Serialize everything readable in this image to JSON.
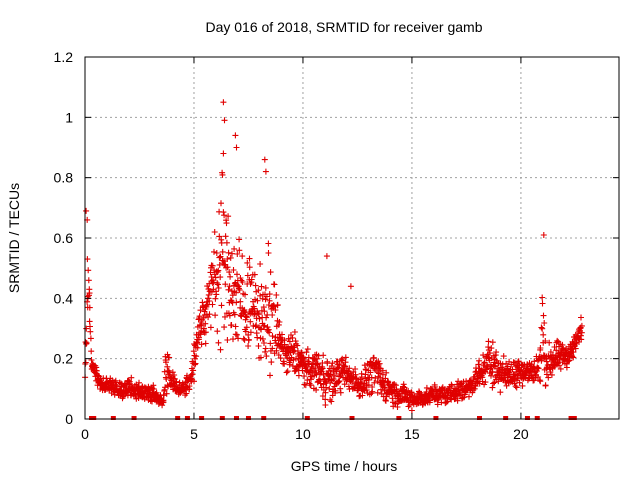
{
  "chart_data": {
    "type": "scatter",
    "title": "Day 016 of 2018, SRMTID for receiver gamb",
    "xlabel": "GPS time / hours",
    "ylabel": "SRMTID / TECUs",
    "xlim": [
      0,
      24.5
    ],
    "ylim": [
      0,
      1.2
    ],
    "grid": true,
    "xticks": [
      0,
      5,
      10,
      15,
      20
    ],
    "xtick_labels": [
      "0",
      "5",
      "10",
      "15",
      "20"
    ],
    "yticks": [
      0,
      0.2,
      0.4,
      0.6,
      0.8,
      1.0,
      1.2
    ],
    "ytick_labels": [
      "0",
      "0.2",
      "0.4",
      "0.6",
      "0.8",
      "1",
      "1.2"
    ],
    "marker": "+",
    "color": "#e00000",
    "envelope_hours": [
      0.0,
      0.1,
      0.15,
      0.3,
      0.5,
      1.0,
      1.5,
      2.0,
      2.5,
      3.0,
      3.3,
      3.6,
      3.75,
      3.9,
      4.2,
      4.5,
      4.8,
      5.0,
      5.2,
      5.5,
      5.8,
      6.0,
      6.3,
      6.6,
      6.9,
      7.2,
      7.5,
      7.8,
      8.1,
      8.4,
      8.7,
      9.0,
      9.3,
      9.6,
      10.0,
      10.3,
      10.7,
      11.0,
      11.3,
      11.6,
      12.0,
      12.3,
      12.6,
      13.0,
      13.3,
      13.6,
      14.0,
      14.3,
      14.6,
      15.0,
      15.3,
      15.6,
      16.0,
      16.5,
      17.0,
      17.5,
      18.0,
      18.3,
      18.6,
      19.0,
      19.5,
      20.0,
      20.3,
      20.6,
      20.9,
      21.0,
      21.1,
      21.3,
      21.6,
      22.0,
      22.3,
      22.6,
      22.8
    ],
    "envelope_center": [
      0.16,
      0.4,
      0.5,
      0.18,
      0.14,
      0.11,
      0.1,
      0.1,
      0.09,
      0.09,
      0.07,
      0.06,
      0.2,
      0.14,
      0.1,
      0.1,
      0.12,
      0.18,
      0.3,
      0.35,
      0.42,
      0.5,
      0.55,
      0.45,
      0.42,
      0.38,
      0.4,
      0.35,
      0.33,
      0.36,
      0.32,
      0.25,
      0.2,
      0.22,
      0.18,
      0.16,
      0.17,
      0.14,
      0.12,
      0.15,
      0.15,
      0.13,
      0.11,
      0.14,
      0.16,
      0.12,
      0.1,
      0.08,
      0.08,
      0.06,
      0.07,
      0.07,
      0.08,
      0.08,
      0.09,
      0.1,
      0.14,
      0.16,
      0.2,
      0.16,
      0.14,
      0.17,
      0.15,
      0.16,
      0.18,
      0.3,
      0.18,
      0.19,
      0.2,
      0.21,
      0.22,
      0.27,
      0.3
    ],
    "envelope_spread": [
      0.04,
      0.25,
      0.2,
      0.04,
      0.05,
      0.04,
      0.04,
      0.05,
      0.04,
      0.04,
      0.03,
      0.02,
      0.15,
      0.04,
      0.04,
      0.04,
      0.05,
      0.08,
      0.1,
      0.15,
      0.18,
      0.25,
      0.45,
      0.3,
      0.3,
      0.25,
      0.25,
      0.2,
      0.2,
      0.35,
      0.2,
      0.1,
      0.1,
      0.12,
      0.08,
      0.08,
      0.1,
      0.12,
      0.1,
      0.08,
      0.08,
      0.06,
      0.06,
      0.08,
      0.1,
      0.08,
      0.06,
      0.06,
      0.05,
      0.05,
      0.04,
      0.04,
      0.04,
      0.04,
      0.05,
      0.05,
      0.06,
      0.08,
      0.12,
      0.08,
      0.06,
      0.08,
      0.06,
      0.08,
      0.12,
      0.3,
      0.1,
      0.08,
      0.08,
      0.06,
      0.06,
      0.05,
      0.06
    ],
    "point_count": 1800,
    "peak_points": [
      {
        "x": 6.35,
        "y": 1.05
      },
      {
        "x": 6.4,
        "y": 0.99
      },
      {
        "x": 6.35,
        "y": 0.88
      },
      {
        "x": 6.9,
        "y": 0.94
      },
      {
        "x": 6.95,
        "y": 0.9
      },
      {
        "x": 8.25,
        "y": 0.86
      },
      {
        "x": 8.3,
        "y": 0.82
      },
      {
        "x": 0.05,
        "y": 0.69
      },
      {
        "x": 0.1,
        "y": 0.66
      },
      {
        "x": 21.05,
        "y": 0.61
      },
      {
        "x": 11.1,
        "y": 0.54
      },
      {
        "x": 12.2,
        "y": 0.44
      }
    ],
    "data_gaps_hours": [
      0.3,
      0.4,
      1.3,
      2.25,
      4.25,
      4.7,
      5.35,
      6.3,
      6.95,
      7.5,
      8.2,
      10.2,
      12.25,
      14.4,
      16.1,
      18.1,
      19.3,
      20.3,
      20.75,
      22.3,
      22.45
    ]
  }
}
